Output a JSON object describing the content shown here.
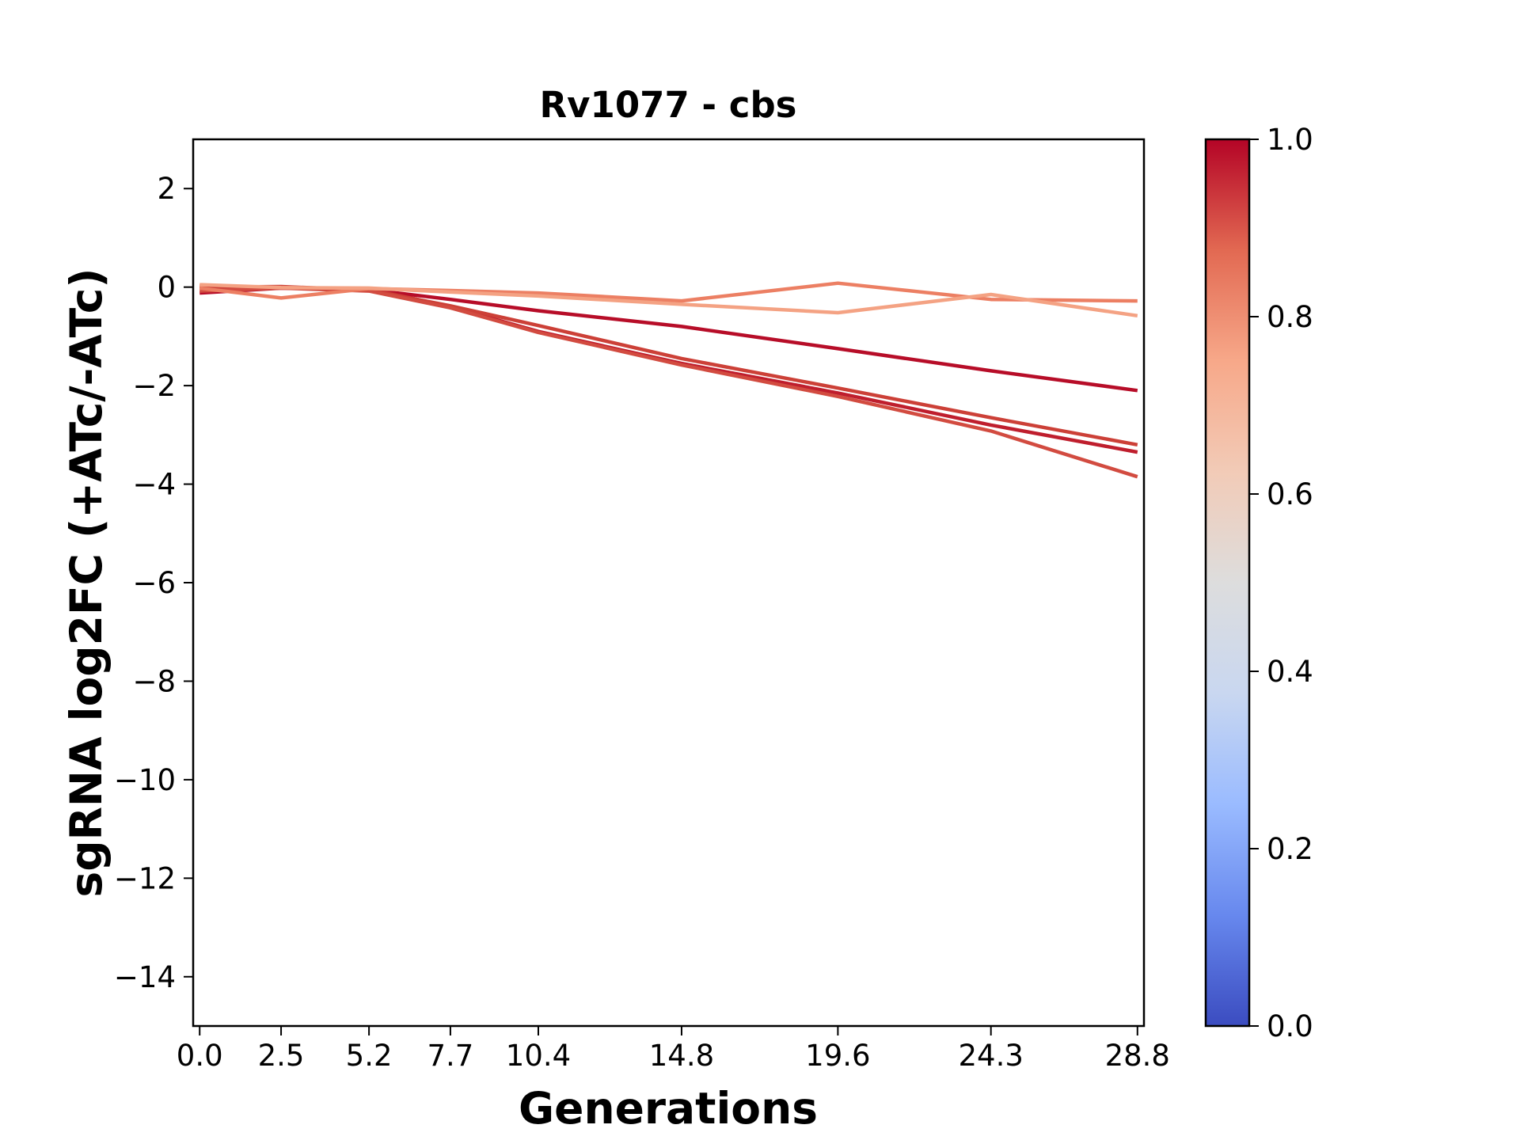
{
  "chart_data": {
    "type": "line",
    "title": "Rv1077 - cbs",
    "xlabel": "Generations",
    "ylabel": "sgRNA log2FC (+ATc/-ATc)",
    "x": [
      0.0,
      2.5,
      5.2,
      7.7,
      10.4,
      14.8,
      19.6,
      24.3,
      28.8
    ],
    "x_tick_labels": [
      "0.0",
      "2.5",
      "5.2",
      "7.7",
      "10.4",
      "14.8",
      "19.6",
      "24.3",
      "28.8"
    ],
    "xlim": [
      -0.2,
      29.0
    ],
    "ylim": [
      -15,
      3
    ],
    "y_ticks": [
      2,
      0,
      -2,
      -4,
      -6,
      -8,
      -10,
      -12,
      -14
    ],
    "y_tick_labels": [
      "2",
      "0",
      "−2",
      "−4",
      "−6",
      "−8",
      "−10",
      "−12",
      "−14"
    ],
    "grid": false,
    "legend": "none",
    "colorbar": {
      "colormap": "coolwarm",
      "range": [
        0.0,
        1.0
      ],
      "ticks": [
        0.0,
        0.2,
        0.4,
        0.6,
        0.8,
        1.0
      ],
      "tick_labels": [
        "0.0",
        "0.2",
        "0.4",
        "0.6",
        "0.8",
        "1.0"
      ],
      "stops": [
        "#3b4cc0",
        "#6788ee",
        "#9abbff",
        "#c9d7f0",
        "#dddddd",
        "#f2cbb7",
        "#f7a889",
        "#e26952",
        "#b40426"
      ]
    },
    "series": [
      {
        "color_value": 0.98,
        "color": "#b70d28",
        "values": [
          -0.12,
          -0.02,
          -0.05,
          -0.25,
          -0.48,
          -0.8,
          -1.25,
          -1.7,
          -2.1
        ]
      },
      {
        "color_value": 0.95,
        "color": "#bf1e2d",
        "values": [
          0.02,
          -0.01,
          -0.03,
          -0.4,
          -0.9,
          -1.55,
          -2.15,
          -2.8,
          -3.35
        ]
      },
      {
        "color_value": 0.88,
        "color": "#cc4037",
        "values": [
          0.0,
          0.01,
          -0.06,
          -0.38,
          -0.78,
          -1.45,
          -2.05,
          -2.65,
          -3.2
        ]
      },
      {
        "color_value": 0.85,
        "color": "#d24b40",
        "values": [
          -0.08,
          -0.02,
          -0.08,
          -0.42,
          -0.92,
          -1.58,
          -2.22,
          -2.92,
          -3.85
        ]
      },
      {
        "color_value": 0.78,
        "color": "#ec7f63",
        "values": [
          -0.02,
          -0.22,
          -0.03,
          -0.07,
          -0.12,
          -0.28,
          0.08,
          -0.25,
          -0.28
        ]
      },
      {
        "color_value": 0.7,
        "color": "#f4a283",
        "values": [
          0.05,
          -0.01,
          -0.02,
          -0.1,
          -0.18,
          -0.35,
          -0.52,
          -0.15,
          -0.58
        ]
      }
    ]
  }
}
